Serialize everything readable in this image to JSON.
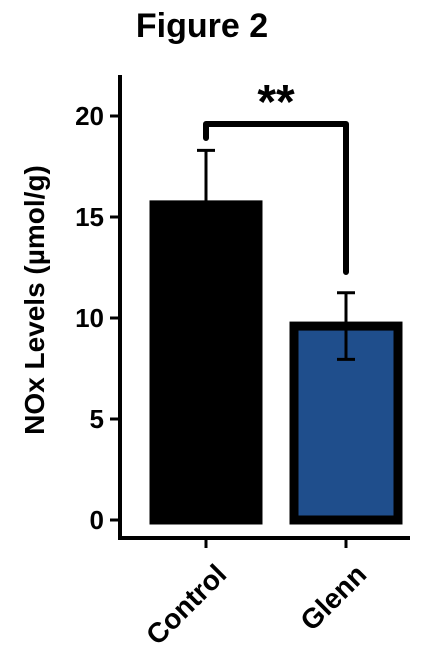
{
  "chart_data": {
    "type": "bar",
    "title": "Figure 2",
    "xlabel": "",
    "ylabel": "NOx Levels (µmol/g)",
    "categories": [
      "Control",
      "Glenn"
    ],
    "values": [
      15.6,
      9.6
    ],
    "errors": [
      2.7,
      1.65
    ],
    "ylim": [
      0,
      22
    ],
    "yticks": [
      0,
      5,
      10,
      15,
      20
    ],
    "bar_colors": [
      "#000000",
      "#1f4e8c"
    ],
    "bar_edge_color": "#000000",
    "grid": false,
    "legend": "none",
    "significance": {
      "between": [
        "Control",
        "Glenn"
      ],
      "label": "**"
    }
  }
}
